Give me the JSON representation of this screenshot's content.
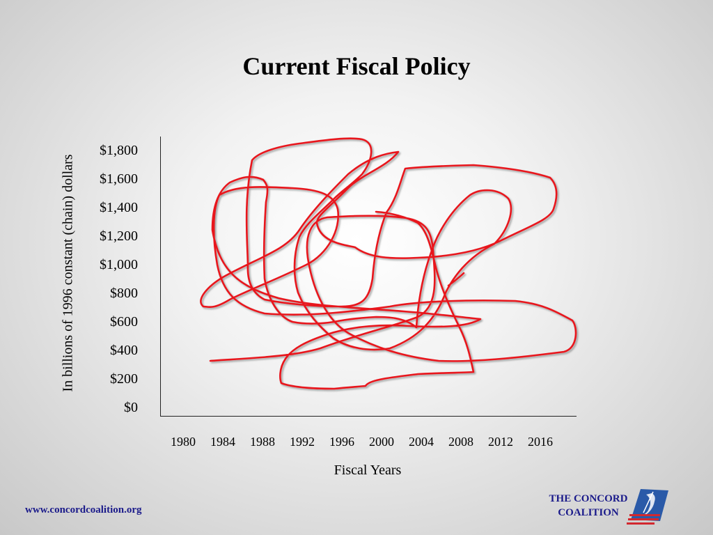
{
  "chart_data": {
    "type": "line",
    "title": "Current Fiscal Policy",
    "ylabel": "In billions of 1996 constant (chain) dollars",
    "xlabel": "Fiscal Years",
    "y_ticks": [
      "$1,800",
      "$1,600",
      "$1,400",
      "$1,200",
      "$1,000",
      "$800",
      "$600",
      "$400",
      "$200",
      "$0"
    ],
    "x_ticks": [
      "1980",
      "1984",
      "1988",
      "1992",
      "1996",
      "2000",
      "2004",
      "2008",
      "2012",
      "2016"
    ],
    "ylim": [
      0,
      1800
    ],
    "grid": false,
    "annotation": "hand-drawn red scribble across plot area",
    "scribble_color": "#e8141e"
  },
  "footer": {
    "url": "www.concordcoalition.org",
    "logo_line1": "THE CONCORD",
    "logo_line2": "COALITION"
  },
  "colors": {
    "text_blue": "#1a1a8a",
    "logo_red": "#d2282e",
    "logo_blue": "#2a5aa8"
  }
}
